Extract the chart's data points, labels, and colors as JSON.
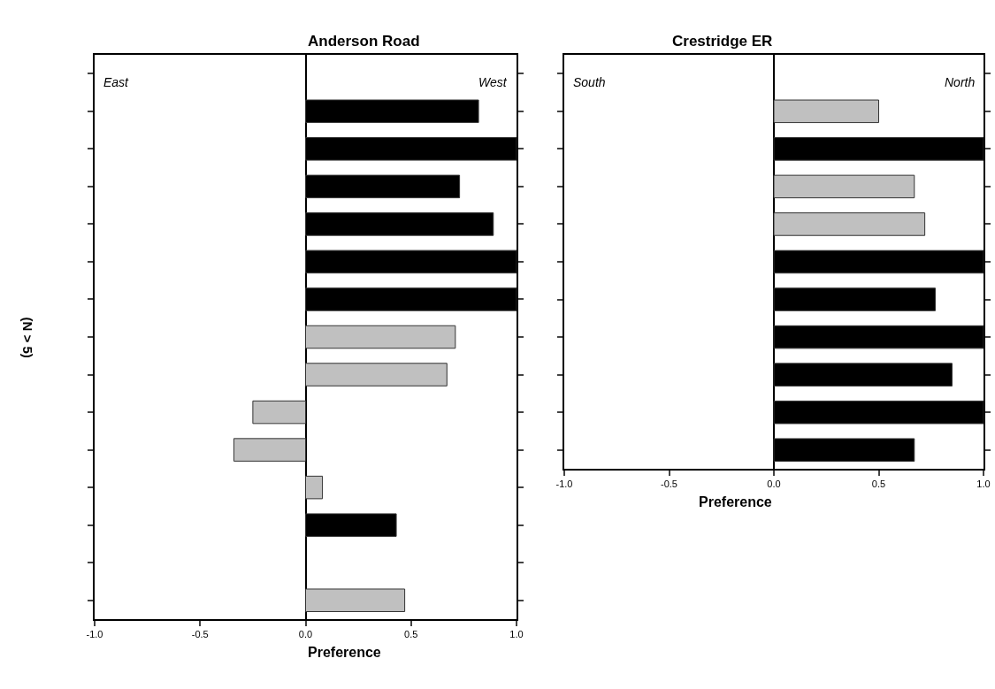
{
  "chart_data": [
    {
      "type": "bar",
      "orientation": "horizontal",
      "title": "Anderson Road",
      "xlabel": "Preference",
      "ylabel": "(N > 5)",
      "annotations": [
        "East",
        "West"
      ],
      "categories": [
        null,
        null,
        null,
        null,
        null,
        null,
        null,
        null,
        null,
        null,
        null,
        null,
        null,
        null,
        null
      ],
      "values": [
        null,
        0.82,
        1.0,
        0.73,
        0.89,
        1.0,
        1.0,
        0.71,
        0.67,
        -0.25,
        -0.34,
        0.08,
        0.43,
        null,
        0.47
      ],
      "colors": [
        null,
        "#000000",
        "#000000",
        "#000000",
        "#000000",
        "#000000",
        "#000000",
        "#c0c0c0",
        "#c0c0c0",
        "#c0c0c0",
        "#c0c0c0",
        "#c0c0c0",
        "#000000",
        null,
        "#c0c0c0"
      ],
      "xlim": [
        -1,
        1
      ],
      "xticks": [
        {
          "value": -1,
          "label": "-1.0"
        },
        {
          "value": -0.5,
          "label": "-0.5"
        },
        {
          "value": 0,
          "label": "0.0"
        },
        {
          "value": 0.5,
          "label": "0.5"
        },
        {
          "value": 1,
          "label": "1.0"
        }
      ],
      "tick_labels": "x"
    },
    {
      "type": "bar",
      "orientation": "horizontal",
      "title": "Crestridge ER",
      "xlabel": "Preference",
      "annotations": [
        "South",
        "North"
      ],
      "categories": [
        null,
        null,
        null,
        null,
        null,
        null,
        null,
        null,
        null,
        null,
        null
      ],
      "values": [
        null,
        0.5,
        1.0,
        0.67,
        0.72,
        1.0,
        0.77,
        1.0,
        0.85,
        1.0,
        0.67
      ],
      "colors": [
        null,
        "#c0c0c0",
        "#000000",
        "#c0c0c0",
        "#c0c0c0",
        "#000000",
        "#000000",
        "#000000",
        "#000000",
        "#000000",
        "#000000"
      ],
      "xlim": [
        -1,
        1
      ],
      "xticks": [
        {
          "value": -1,
          "label": "-1.0"
        },
        {
          "value": -0.5,
          "label": "-0.5"
        },
        {
          "value": 0,
          "label": "0.0"
        },
        {
          "value": 0.5,
          "label": "0.5"
        },
        {
          "value": 1,
          "label": "1.0"
        }
      ],
      "tick_labels": "x"
    }
  ]
}
